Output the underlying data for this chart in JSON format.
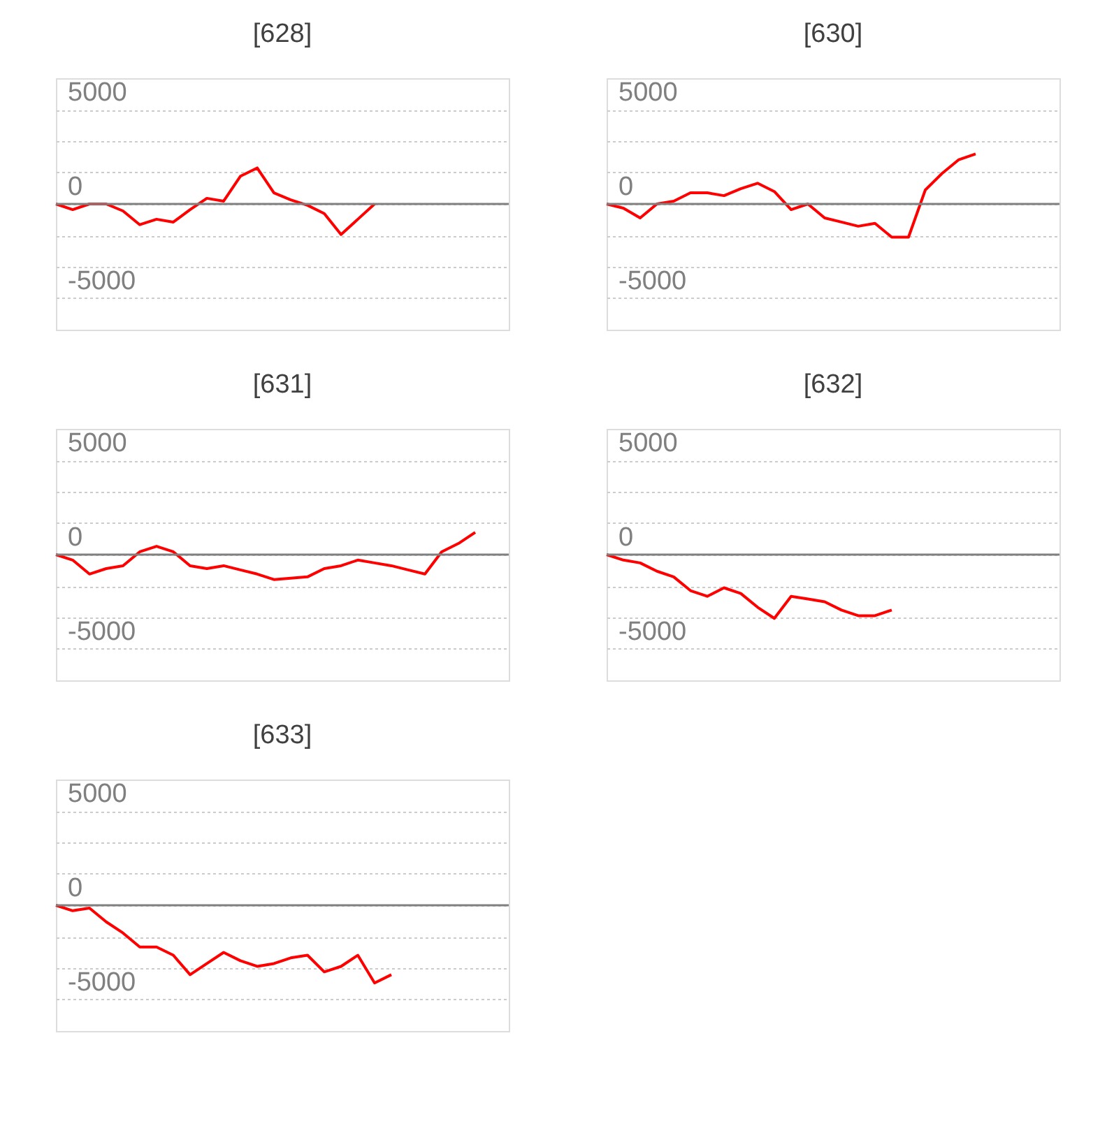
{
  "chart_data": [
    {
      "type": "line",
      "title": "[628]",
      "categories": [
        null,
        null,
        null,
        null,
        null,
        null,
        null,
        null,
        null,
        null,
        null,
        null,
        null,
        null,
        null,
        null,
        null,
        null,
        null,
        null,
        null,
        null,
        null,
        null,
        null,
        null,
        null,
        null
      ],
      "series": [
        {
          "color": "#ff0000",
          "values": [
            0,
            -300,
            0,
            0,
            -370,
            -1100,
            -810,
            -960,
            -300,
            300,
            150,
            1470,
            1910,
            590,
            220,
            -70,
            -510,
            -1620,
            -810,
            0,
            null,
            null,
            null,
            null,
            null,
            null,
            null,
            null
          ]
        }
      ],
      "ylim": [
        -6667,
        6667
      ],
      "yticks": [
        5000,
        {
          "value": 3333,
          "label": null
        },
        {
          "value": 1667,
          "label": null
        },
        0,
        {
          "value": -1667,
          "label": null
        },
        {
          "value": -3333,
          "label": null
        },
        -5000
      ],
      "grid": "y",
      "tick_labels": "y",
      "ref_lines": [
        {
          "axis": "y",
          "value": 0,
          "color": "#808080"
        }
      ]
    },
    {
      "type": "line",
      "title": "[630]",
      "categories": [
        null,
        null,
        null,
        null,
        null,
        null,
        null,
        null,
        null,
        null,
        null,
        null,
        null,
        null,
        null,
        null,
        null,
        null,
        null,
        null,
        null,
        null,
        null,
        null,
        null,
        null,
        null,
        null
      ],
      "series": [
        {
          "color": "#ff0000",
          "values": [
            0,
            -220,
            -740,
            0,
            150,
            590,
            590,
            440,
            810,
            1100,
            660,
            -300,
            0,
            -740,
            -960,
            -1180,
            -1030,
            -1760,
            -1760,
            740,
            1620,
            2350,
            2650,
            null,
            null,
            null,
            null,
            null
          ]
        }
      ],
      "ylim": [
        -6667,
        6667
      ],
      "yticks": [
        5000,
        {
          "value": 3333,
          "label": null
        },
        {
          "value": 1667,
          "label": null
        },
        0,
        {
          "value": -1667,
          "label": null
        },
        {
          "value": -3333,
          "label": null
        },
        -5000
      ],
      "grid": "y",
      "tick_labels": "y",
      "ref_lines": [
        {
          "axis": "y",
          "value": 0,
          "color": "#808080"
        }
      ]
    },
    {
      "type": "line",
      "title": "[631]",
      "categories": [
        null,
        null,
        null,
        null,
        null,
        null,
        null,
        null,
        null,
        null,
        null,
        null,
        null,
        null,
        null,
        null,
        null,
        null,
        null,
        null,
        null,
        null,
        null,
        null,
        null,
        null,
        null,
        null
      ],
      "series": [
        {
          "color": "#ff0000",
          "values": [
            0,
            -290,
            -1030,
            -740,
            -590,
            150,
            440,
            150,
            -590,
            -740,
            -590,
            -810,
            -1030,
            -1320,
            -1250,
            -1180,
            -740,
            -590,
            -290,
            -440,
            -590,
            -810,
            -1030,
            150,
            590,
            1180,
            null,
            null
          ]
        }
      ],
      "ylim": [
        -6667,
        6667
      ],
      "yticks": [
        5000,
        {
          "value": 3333,
          "label": null
        },
        {
          "value": 1667,
          "label": null
        },
        0,
        {
          "value": -1667,
          "label": null
        },
        {
          "value": -3333,
          "label": null
        },
        -5000
      ],
      "grid": "y",
      "tick_labels": "y",
      "ref_lines": [
        {
          "axis": "y",
          "value": 0,
          "color": "#808080"
        }
      ]
    },
    {
      "type": "line",
      "title": "[632]",
      "categories": [
        null,
        null,
        null,
        null,
        null,
        null,
        null,
        null,
        null,
        null,
        null,
        null,
        null,
        null,
        null,
        null,
        null,
        null,
        null,
        null,
        null,
        null,
        null,
        null,
        null,
        null,
        null,
        null
      ],
      "series": [
        {
          "color": "#ff0000",
          "values": [
            0,
            -290,
            -440,
            -880,
            -1180,
            -1910,
            -2210,
            -1760,
            -2060,
            -2790,
            -3380,
            -2210,
            -2350,
            -2500,
            -2940,
            -3240,
            -3240,
            -2940,
            null,
            null,
            null,
            null,
            null,
            null,
            null,
            null,
            null,
            null
          ]
        }
      ],
      "ylim": [
        -6667,
        6667
      ],
      "yticks": [
        5000,
        {
          "value": 3333,
          "label": null
        },
        {
          "value": 1667,
          "label": null
        },
        0,
        {
          "value": -1667,
          "label": null
        },
        {
          "value": -3333,
          "label": null
        },
        -5000
      ],
      "grid": "y",
      "tick_labels": "y",
      "ref_lines": [
        {
          "axis": "y",
          "value": 0,
          "color": "#808080"
        }
      ]
    },
    {
      "type": "line",
      "title": "[633]",
      "categories": [
        null,
        null,
        null,
        null,
        null,
        null,
        null,
        null,
        null,
        null,
        null,
        null,
        null,
        null,
        null,
        null,
        null,
        null,
        null,
        null,
        null,
        null,
        null,
        null,
        null,
        null,
        null,
        null
      ],
      "series": [
        {
          "color": "#ff0000",
          "values": [
            0,
            -290,
            -150,
            -880,
            -1470,
            -2210,
            -2210,
            -2650,
            -3680,
            -3090,
            -2500,
            -2940,
            -3240,
            -3090,
            -2790,
            -2650,
            -3530,
            -3240,
            -2650,
            -4120,
            -3680,
            null,
            null,
            null,
            null,
            null,
            null,
            null
          ]
        }
      ],
      "ylim": [
        -6667,
        6667
      ],
      "yticks": [
        5000,
        {
          "value": 3333,
          "label": null
        },
        {
          "value": 1667,
          "label": null
        },
        0,
        {
          "value": -1667,
          "label": null
        },
        {
          "value": -3333,
          "label": null
        },
        -5000
      ],
      "grid": "y",
      "tick_labels": "y",
      "ref_lines": [
        {
          "axis": "y",
          "value": 0,
          "color": "#808080"
        }
      ]
    }
  ]
}
